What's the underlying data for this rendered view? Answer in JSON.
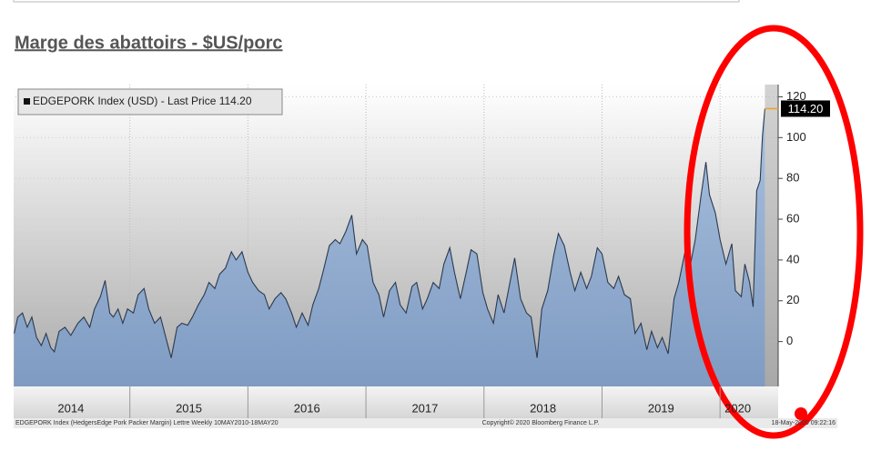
{
  "page_title": "Marge des abattoirs - $US/porc",
  "chart_data": {
    "type": "area",
    "x": [
      2014.02,
      2014.05,
      2014.09,
      2014.13,
      2014.17,
      2014.21,
      2014.25,
      2014.29,
      2014.33,
      2014.36,
      2014.4,
      2014.45,
      2014.5,
      2014.56,
      2014.61,
      2014.66,
      2014.7,
      2014.75,
      2014.79,
      2014.83,
      2014.86,
      2014.9,
      2014.94,
      2014.98,
      2015.03,
      2015.07,
      2015.12,
      2015.16,
      2015.21,
      2015.26,
      2015.3,
      2015.35,
      2015.4,
      2015.44,
      2015.49,
      2015.53,
      2015.58,
      2015.63,
      2015.67,
      2015.72,
      2015.76,
      2015.81,
      2015.86,
      2015.9,
      2015.95,
      2016.0,
      2016.04,
      2016.09,
      2016.14,
      2016.18,
      2016.23,
      2016.28,
      2016.32,
      2016.37,
      2016.41,
      2016.46,
      2016.51,
      2016.55,
      2016.6,
      2016.64,
      2016.69,
      2016.74,
      2016.78,
      2016.83,
      2016.88,
      2016.92,
      2016.97,
      2017.01,
      2017.06,
      2017.11,
      2017.15,
      2017.2,
      2017.25,
      2017.29,
      2017.34,
      2017.39,
      2017.43,
      2017.48,
      2017.52,
      2017.57,
      2017.62,
      2017.66,
      2017.71,
      2017.75,
      2017.8,
      2017.85,
      2017.89,
      2017.94,
      2017.99,
      2018.03,
      2018.08,
      2018.12,
      2018.17,
      2018.22,
      2018.26,
      2018.31,
      2018.36,
      2018.4,
      2018.45,
      2018.49,
      2018.54,
      2018.59,
      2018.63,
      2018.68,
      2018.73,
      2018.77,
      2018.82,
      2018.87,
      2018.91,
      2018.96,
      2019.0,
      2019.05,
      2019.1,
      2019.14,
      2019.19,
      2019.24,
      2019.28,
      2019.33,
      2019.38,
      2019.42,
      2019.47,
      2019.51,
      2019.56,
      2019.61,
      2019.65,
      2019.7,
      2019.75,
      2019.79,
      2019.84,
      2019.88,
      2019.91,
      2019.96,
      2020.0,
      2020.05,
      2020.1,
      2020.13,
      2020.18,
      2020.21,
      2020.25,
      2020.28,
      2020.31,
      2020.34,
      2020.36,
      2020.38
    ],
    "series": [
      {
        "name": "EDGEPORK Index (USD) - Last Price 114.20",
        "color": "#2b3a4f",
        "fill": "#93b0d4",
        "values": [
          4,
          12,
          14,
          7,
          12,
          2,
          -2,
          4,
          -3,
          -5,
          5,
          7,
          3,
          9,
          12,
          7,
          16,
          22,
          30,
          14,
          12,
          16,
          9,
          16,
          14,
          23,
          26,
          16,
          9,
          12,
          3,
          -8,
          7,
          9,
          8,
          12,
          18,
          23,
          29,
          26,
          33,
          36,
          44,
          40,
          44,
          34,
          29,
          25,
          23,
          16,
          21,
          24,
          21,
          14,
          7,
          14,
          8,
          18,
          26,
          35,
          47,
          50,
          48,
          54,
          62,
          43,
          50,
          47,
          29,
          23,
          12,
          25,
          29,
          18,
          14,
          27,
          29,
          16,
          21,
          29,
          26,
          38,
          46,
          34,
          21,
          34,
          45,
          43,
          24,
          16,
          9,
          23,
          14,
          29,
          41,
          21,
          14,
          12,
          -8,
          16,
          25,
          42,
          53,
          47,
          34,
          25,
          34,
          26,
          32,
          46,
          43,
          29,
          26,
          32,
          23,
          21,
          4,
          9,
          -4,
          5,
          -3,
          2,
          -6,
          21,
          29,
          43,
          38,
          50,
          72,
          88,
          72,
          63,
          50,
          38,
          48,
          25,
          22,
          38,
          29,
          17,
          74,
          79,
          101,
          114.2
        ]
      }
    ],
    "last_price": {
      "value": 114.2,
      "label": "114.20"
    },
    "xlim": [
      2014,
      2020.5
    ],
    "xticks": [
      {
        "value": 2014.5,
        "label": "2014"
      },
      {
        "value": 2015.5,
        "label": "2015"
      },
      {
        "value": 2016.5,
        "label": "2016"
      },
      {
        "value": 2017.5,
        "label": "2017"
      },
      {
        "value": 2018.5,
        "label": "2018"
      },
      {
        "value": 2019.5,
        "label": "2019"
      },
      {
        "value": 2020.15,
        "label": "2020"
      }
    ],
    "ylim": [
      -22,
      126
    ],
    "yticks": [
      0,
      20,
      40,
      60,
      80,
      100,
      120
    ],
    "grid": true,
    "footer_left": "EDGEPORK Index (HedgersEdge Pork Packer Margin) Lettre  Weekly 10MAY2010-18MAY20",
    "footer_center": "Copyright© 2020 Bloomberg Finance L.P.",
    "footer_right": "18-May-2020 09:22:16"
  }
}
